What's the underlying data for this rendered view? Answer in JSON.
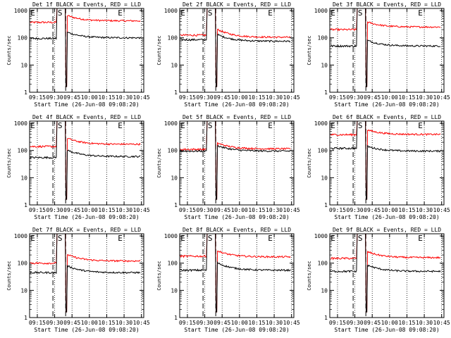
{
  "chart_data": {
    "type": "line",
    "shared": {
      "x_ticks": [
        "09:15",
        "09:30",
        "09:45",
        "10:00",
        "10:15",
        "10:30",
        "10:45"
      ],
      "x_range": [
        "09:08:20",
        "10:47:00"
      ],
      "xlabel": "Start Time (26-Jun-08 09:08:20)",
      "ylabel": "Counts/sec",
      "y_scale": "log",
      "ylim": [
        1,
        1200
      ],
      "y_ticks": [
        "1",
        "10",
        "100",
        "1000"
      ],
      "series_colors": {
        "events": "#000000",
        "lld": "#ff0000"
      },
      "interval_markers": [
        "E",
        "S",
        "E"
      ],
      "interval_marker_times": [
        "09:08:30",
        "09:32:00",
        "10:24:00"
      ],
      "dashed_lines": [
        "09:28:30",
        "09:39:30"
      ],
      "dotted_vlines": [
        "09:15",
        "09:30",
        "09:45",
        "10:00",
        "10:15",
        "10:30",
        "10:45"
      ]
    },
    "panels": [
      {
        "title": "Det 1f BLACK = Events, RED = LLD",
        "events_pre": 95,
        "lld_pre": 370,
        "events_post": 100,
        "lld_post": 420,
        "events_post_start": 170,
        "lld_post_start": 700
      },
      {
        "title": "Det 2f BLACK = Events, RED = LLD",
        "events_pre": 85,
        "lld_pre": 125,
        "events_post": 75,
        "lld_post": 105,
        "events_post_start": 140,
        "lld_post_start": 220
      },
      {
        "title": "Det 3f BLACK = Events, RED = LLD",
        "events_pre": 50,
        "lld_pre": 200,
        "events_post": 50,
        "lld_post": 250,
        "events_post_start": 85,
        "lld_post_start": 400
      },
      {
        "title": "Det 4f BLACK = Events, RED = LLD",
        "events_pre": 55,
        "lld_pre": 140,
        "events_post": 60,
        "lld_post": 170,
        "events_post_start": 110,
        "lld_post_start": 300
      },
      {
        "title": "Det 5f BLACK = Events, RED = LLD",
        "events_pre": 95,
        "lld_pre": 110,
        "events_post": 95,
        "lld_post": 115,
        "events_post_start": 160,
        "lld_post_start": 200
      },
      {
        "title": "Det 6f BLACK = Events, RED = LLD",
        "events_pre": 120,
        "lld_pre": 380,
        "events_post": 95,
        "lld_post": 390,
        "events_post_start": 150,
        "lld_post_start": 600
      },
      {
        "title": "Det 7f BLACK = Events, RED = LLD",
        "events_pre": 45,
        "lld_pre": 100,
        "events_post": 45,
        "lld_post": 120,
        "events_post_start": 85,
        "lld_post_start": 220
      },
      {
        "title": "Det 8f BLACK = Events, RED = LLD",
        "events_pre": 55,
        "lld_pre": 180,
        "events_post": 55,
        "lld_post": 170,
        "events_post_start": 110,
        "lld_post_start": 300
      },
      {
        "title": "Det 9f BLACK = Events, RED = LLD",
        "events_pre": 50,
        "lld_pre": 150,
        "events_post": 50,
        "lld_post": 160,
        "events_post_start": 90,
        "lld_post_start": 280
      }
    ]
  }
}
